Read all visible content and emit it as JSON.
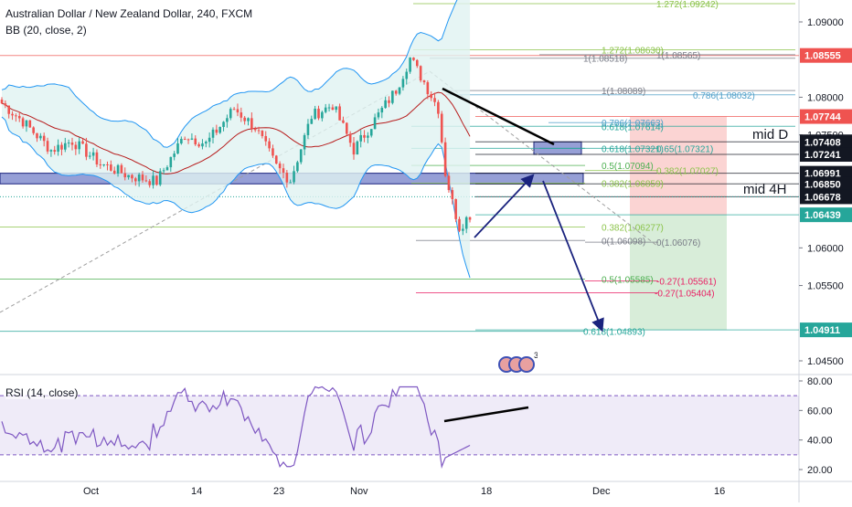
{
  "header": {
    "symbol": "Australian Dollar / New Zealand Dollar, 240, FXCM",
    "indicator": "BB (20, close, 2)"
  },
  "rsi": {
    "label": "RSI (14, close)",
    "ticks": [
      "80.00",
      "60.00",
      "40.00",
      "20.00"
    ],
    "tick_values": [
      80,
      60,
      40,
      20
    ],
    "band_upper": 70,
    "band_lower": 30,
    "color": "#7e57c2"
  },
  "annotations": {
    "mid_d": "mid D",
    "mid_4h": "mid 4H"
  },
  "chart_data": {
    "type": "line",
    "price_axis_ticks": [
      "1.09000",
      "1.08000",
      "1.07500",
      "1.06000",
      "1.05500",
      "1.04500"
    ],
    "price_axis_values": [
      1.09,
      1.08,
      1.075,
      1.06,
      1.055,
      1.045
    ],
    "time_axis_ticks": [
      "Oct",
      "14",
      "23",
      "Nov",
      "18",
      "Dec",
      "16"
    ],
    "price_labels": [
      {
        "text": "1.08555",
        "value": 1.08555,
        "color": "#ef5350"
      },
      {
        "text": "1.07744",
        "value": 1.07744,
        "color": "#ef5350"
      },
      {
        "text": "1.07408",
        "value": 1.07408,
        "color": "#131722"
      },
      {
        "text": "1.07241",
        "value": 1.07241,
        "color": "#131722"
      },
      {
        "text": "1.06991",
        "value": 1.06991,
        "color": "#131722"
      },
      {
        "text": "1.06850",
        "value": 1.0685,
        "color": "#131722"
      },
      {
        "text": "1.06678",
        "value": 1.06678,
        "color": "#131722"
      },
      {
        "text": "1.06439",
        "value": 1.06439,
        "color": "#26a69a"
      },
      {
        "text": "1.04911",
        "value": 1.04911,
        "color": "#26a69a"
      }
    ],
    "fib_labels": [
      {
        "text": "0.618(1.07614)",
        "value": 1.07614,
        "color": "#26a69a"
      },
      {
        "text": "0.786(1.07663)",
        "value": 1.07663,
        "color": "#4f9fc9"
      },
      {
        "text": "0.786(1.08032)",
        "value": 1.08032,
        "color": "#4f9fc9"
      },
      {
        "text": "1(1.08089)",
        "value": 1.08089,
        "color": "#787b86"
      },
      {
        "text": "1(1.08518)",
        "value": 1.08518,
        "color": "#787b86"
      },
      {
        "text": "1(1.08565)",
        "value": 1.08565,
        "color": "#787b86"
      },
      {
        "text": "1.272(1.08630)",
        "value": 1.0863,
        "color": "#8bc34a"
      },
      {
        "text": "1.272(1.09242)",
        "value": 1.09242,
        "color": "#8bc34a"
      },
      {
        "text": "0.618(1.07321)",
        "value": 1.07321,
        "color": "#26a69a"
      },
      {
        "text": "0.65(1.07321)",
        "value": 1.07321,
        "color": "#26a69a"
      },
      {
        "text": "0.5(1.07094)",
        "value": 1.07094,
        "color": "#4caf50"
      },
      {
        "text": "0.382(1.07027)",
        "value": 1.07027,
        "color": "#8bc34a"
      },
      {
        "text": "0.382(1.06859)",
        "value": 1.06859,
        "color": "#8bc34a"
      },
      {
        "text": "0.382(1.06277)",
        "value": 1.06277,
        "color": "#8bc34a"
      },
      {
        "text": "0(1.06098)",
        "value": 1.06098,
        "color": "#787b86"
      },
      {
        "text": "0(1.06076)",
        "value": 1.06076,
        "color": "#787b86"
      },
      {
        "text": "0.5(1.05585)",
        "value": 1.05585,
        "color": "#4caf50"
      },
      {
        "text": "-0.27(1.05561)",
        "value": 1.05561,
        "color": "#e91e63"
      },
      {
        "text": "-0.27(1.05404)",
        "value": 1.05404,
        "color": "#e91e63"
      },
      {
        "text": "0.618(1.04893)",
        "value": 1.04893,
        "color": "#26a69a"
      }
    ],
    "zones": [
      {
        "name": "mid 4H zone",
        "from": 1.0685,
        "to": 1.06991
      },
      {
        "name": "mid D zone",
        "from": 1.07241,
        "to": 1.07408
      },
      {
        "name": "stop zone",
        "from": 1.06439,
        "to": 1.07744
      },
      {
        "name": "target zone",
        "from": 1.04911,
        "to": 1.06439
      }
    ],
    "current_price": 1.06439,
    "colors": {
      "up": "#26a69a",
      "down": "#ef5350",
      "bb_band": "#2196f3",
      "bb_fill": "#e0f2f1",
      "basis": "#b71c1c",
      "zone": "#3f51b5",
      "arrow": "#1a237e"
    }
  }
}
